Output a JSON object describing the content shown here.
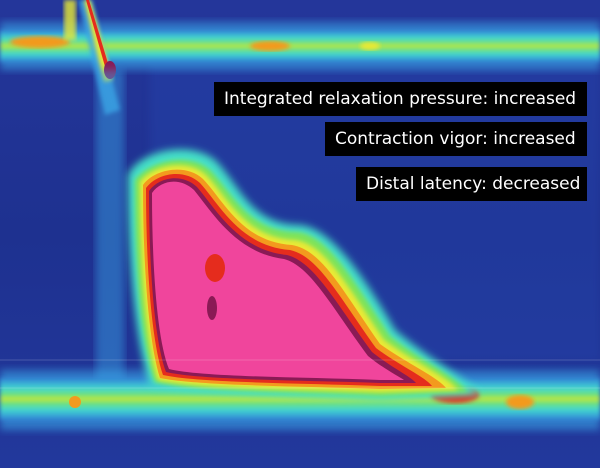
{
  "chart_data": {
    "type": "heatmap",
    "title": "",
    "subtitle": "",
    "xlabel": "",
    "ylabel": "",
    "annotations": [
      "Integrated relaxation pressure: increased",
      "Contraction vigor: increased",
      "Distal latency: decreased"
    ],
    "colormap": [
      "#1d2f8e",
      "#2b56c8",
      "#3aa6e6",
      "#44e0c8",
      "#6fe35a",
      "#e8e935",
      "#f39a1e",
      "#e52c1d",
      "#8a1a55",
      "#f0459c"
    ],
    "grid": false,
    "legend": "none"
  },
  "annotations": {
    "irp": "Integrated relaxation pressure: increased",
    "vigor": "Contraction vigor: increased",
    "latency": "Distal latency: decreased"
  },
  "colors": {
    "background": "#1d2f8e",
    "peak": "#f0459c",
    "label_bg": "#000000",
    "label_text": "#ffffff"
  }
}
